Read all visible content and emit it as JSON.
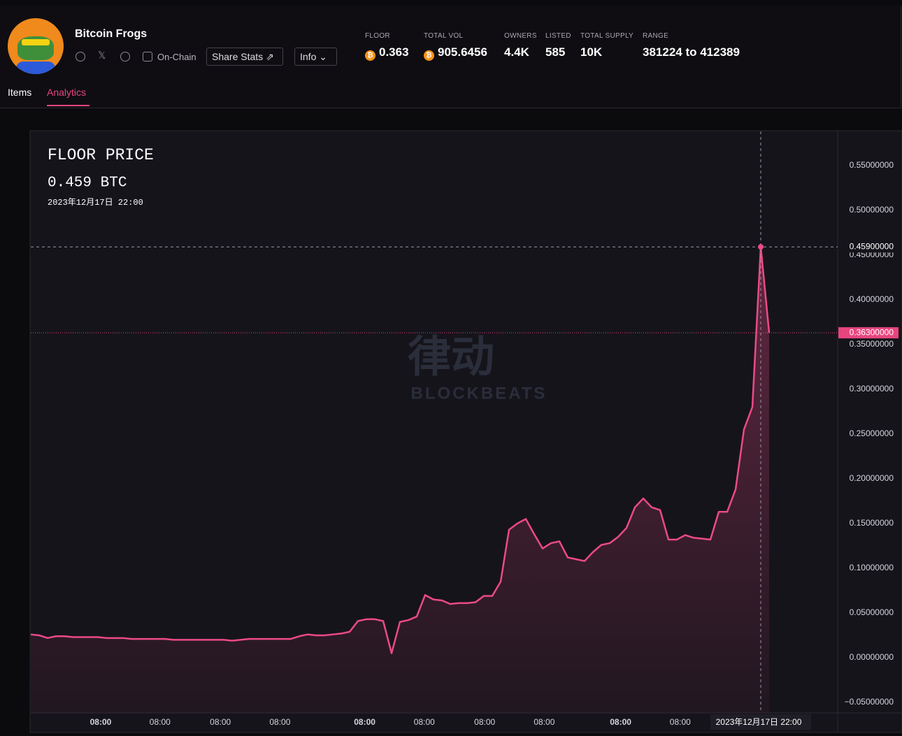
{
  "header": {
    "name": "Bitcoin Frogs",
    "on_chain": "On-Chain",
    "share": "Share Stats",
    "info": "Info",
    "stats": [
      {
        "label": "FLOOR",
        "value": "0.363"
      },
      {
        "label": "TOTAL VOL",
        "value": "905.6456"
      },
      {
        "label": "OWNERS",
        "value": "4.4K"
      },
      {
        "label": "LISTED",
        "value": "585"
      },
      {
        "label": "TOTAL SUPPLY",
        "value": "10K"
      },
      {
        "label": "RANGE",
        "value": "381224 to 412389"
      }
    ],
    "tabs": [
      "Items",
      "Analytics"
    ]
  },
  "watermark": {
    "cn": "律动",
    "en": "BLOCKBEATS"
  },
  "chart_data": {
    "type": "line",
    "title": "FLOOR PRICE",
    "readout": "0.459 BTC",
    "readout_time": "2023年12月17日 22:00",
    "color": "#ec4a86",
    "values": [
      0.026,
      0.025,
      0.022,
      0.024,
      0.024,
      0.023,
      0.023,
      0.023,
      0.023,
      0.022,
      0.022,
      0.022,
      0.021,
      0.021,
      0.021,
      0.021,
      0.021,
      0.02,
      0.02,
      0.02,
      0.02,
      0.02,
      0.02,
      0.02,
      0.019,
      0.02,
      0.021,
      0.021,
      0.021,
      0.021,
      0.021,
      0.021,
      0.024,
      0.026,
      0.025,
      0.025,
      0.026,
      0.027,
      0.029,
      0.041,
      0.043,
      0.043,
      0.041,
      0.005,
      0.04,
      0.042,
      0.046,
      0.07,
      0.065,
      0.064,
      0.06,
      0.061,
      0.061,
      0.062,
      0.069,
      0.069,
      0.085,
      0.143,
      0.15,
      0.155,
      0.138,
      0.122,
      0.128,
      0.13,
      0.112,
      0.11,
      0.108,
      0.118,
      0.126,
      0.128,
      0.135,
      0.145,
      0.168,
      0.178,
      0.168,
      0.165,
      0.132,
      0.132,
      0.137,
      0.134,
      0.133,
      0.132,
      0.163,
      0.163,
      0.188,
      0.255,
      0.28,
      0.459,
      0.363
    ],
    "ylim": [
      -0.0617,
      0.588
    ],
    "yticks": [
      {
        "value": -0.05,
        "label": "−0.05000000"
      },
      {
        "value": 0,
        "label": "0.00000000"
      },
      {
        "value": 0.05,
        "label": "0.05000000"
      },
      {
        "value": 0.1,
        "label": "0.10000000"
      },
      {
        "value": 0.15,
        "label": "0.15000000"
      },
      {
        "value": 0.2,
        "label": "0.20000000"
      },
      {
        "value": 0.25,
        "label": "0.25000000"
      },
      {
        "value": 0.3,
        "label": "0.30000000"
      },
      {
        "value": 0.35,
        "label": "0.35000000"
      },
      {
        "value": 0.4,
        "label": "0.40000000"
      },
      {
        "value": 0.45,
        "label": "0.45000000"
      },
      {
        "value": 0.5,
        "label": "0.50000000"
      },
      {
        "value": 0.55,
        "label": "0.55000000"
      }
    ],
    "xticks": [
      {
        "value": 8.33,
        "label": "08:00",
        "major": true
      },
      {
        "value": 15.4,
        "label": "08:00"
      },
      {
        "value": 22.6,
        "label": "08:00"
      },
      {
        "value": 29.7,
        "label": "08:00"
      },
      {
        "value": 39.8,
        "label": "08:00",
        "major": true
      },
      {
        "value": 46.9,
        "label": "08:00"
      },
      {
        "value": 54.1,
        "label": "08:00"
      },
      {
        "value": 61.2,
        "label": "08:00"
      },
      {
        "value": 70.3,
        "label": "08:00",
        "major": true
      },
      {
        "value": 77.4,
        "label": "08:00"
      }
    ],
    "current": {
      "value": 0.363,
      "label": "0.36300000",
      "color": "#e8457f"
    },
    "crosshair": {
      "index": 87,
      "label": "0.45900000"
    }
  }
}
